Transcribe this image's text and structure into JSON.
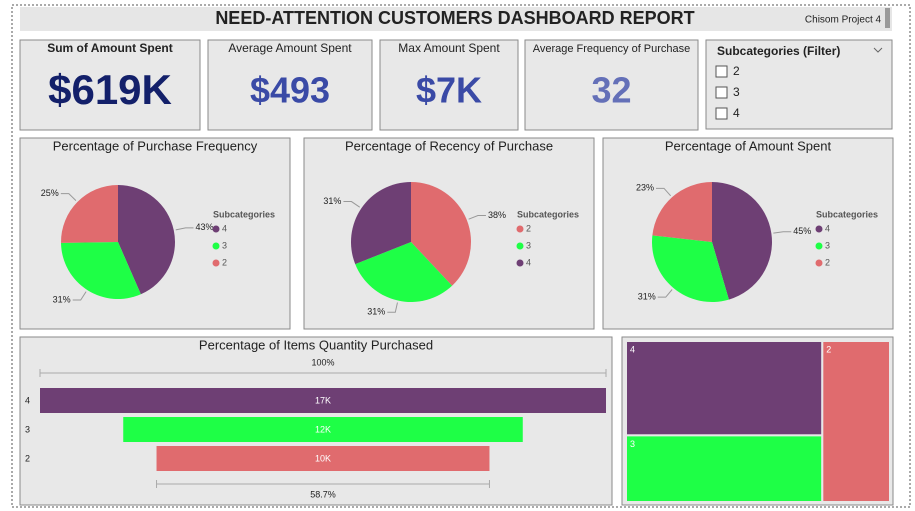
{
  "header": {
    "title": "NEED-ATTENTION CUSTOMERS DASHBOARD REPORT",
    "project": "Chisom Project 4"
  },
  "cards": [
    {
      "title": "Sum of Amount Spent",
      "value": "$619K"
    },
    {
      "title": "Average Amount Spent",
      "value": "$493"
    },
    {
      "title": "Max Amount Spent",
      "value": "$7K"
    },
    {
      "title": "Average Frequency of Purchase",
      "value": "32"
    }
  ],
  "filter": {
    "title": "Subcategories (Filter)",
    "options": [
      "2",
      "3",
      "4"
    ]
  },
  "chart_data": [
    {
      "type": "pie",
      "title": "Percentage of Purchase Frequency",
      "legend_title": "Subcategories",
      "categories": [
        "4",
        "3",
        "2"
      ],
      "values": [
        43,
        31,
        25
      ],
      "value_labels": [
        "43%",
        "31%",
        "25%"
      ],
      "colors": [
        "#6e3f74",
        "#1eff46",
        "#e06b6e"
      ]
    },
    {
      "type": "pie",
      "title": "Percentage of Recency of Purchase",
      "legend_title": "Subcategories",
      "categories": [
        "2",
        "3",
        "4"
      ],
      "values": [
        38,
        31,
        31
      ],
      "value_labels": [
        "38%",
        "31%",
        "31%"
      ],
      "colors": [
        "#e06b6e",
        "#1eff46",
        "#6e3f74"
      ]
    },
    {
      "type": "pie",
      "title": "Percentage of Amount Spent",
      "legend_title": "Subcategories",
      "categories": [
        "4",
        "3",
        "2"
      ],
      "values": [
        45,
        31,
        23
      ],
      "value_labels": [
        "45%",
        "31%",
        "23%"
      ],
      "colors": [
        "#6e3f74",
        "#1eff46",
        "#e06b6e"
      ]
    },
    {
      "type": "funnel",
      "title": "Percentage of Items Quantity Purchased",
      "categories": [
        "4",
        "3",
        "2"
      ],
      "values": [
        17000,
        12000,
        10000
      ],
      "value_labels": [
        "17K",
        "12K",
        "10K"
      ],
      "colors": [
        "#6e3f74",
        "#1eff46",
        "#e06b6e"
      ],
      "annotations": [
        "100%",
        "58.7%"
      ]
    },
    {
      "type": "treemap",
      "categories": [
        "4",
        "3",
        "2"
      ],
      "values": [
        17000,
        12000,
        10000
      ],
      "colors": [
        "#6e3f74",
        "#1eff46",
        "#e06b6e"
      ]
    }
  ]
}
